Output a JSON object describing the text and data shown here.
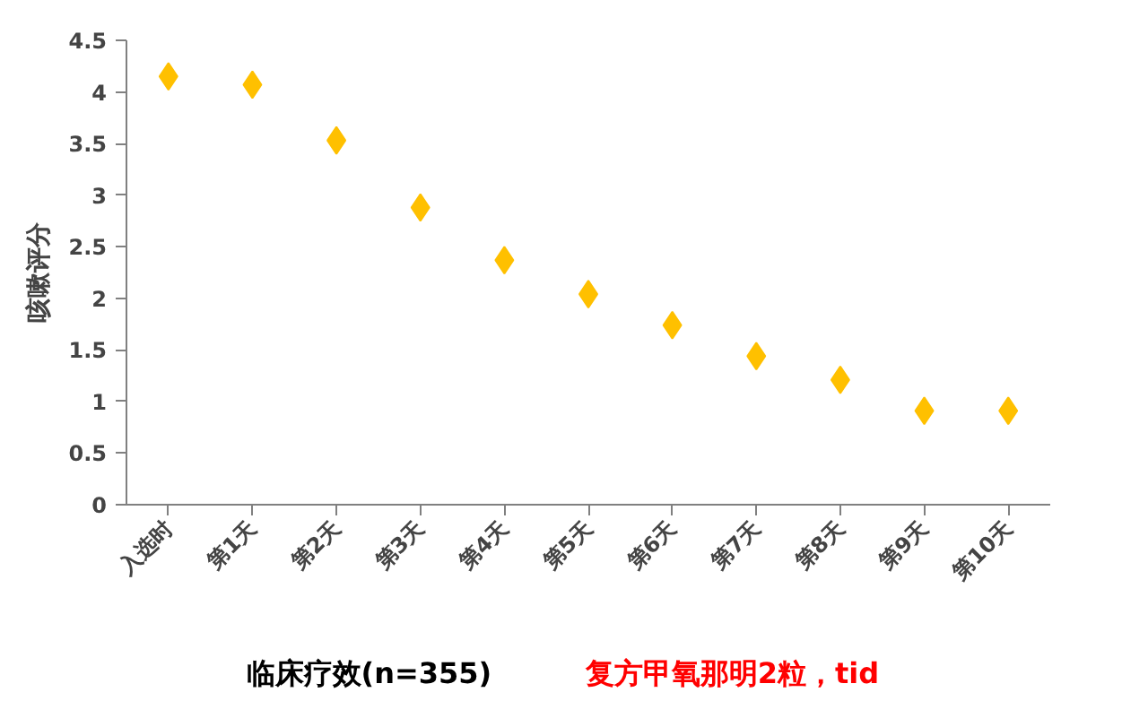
{
  "chart_data": {
    "type": "scatter",
    "ylabel": "咳嗽评分",
    "categories": [
      "入选时",
      "第1天",
      "第2天",
      "第3天",
      "第4天",
      "第5天",
      "第6天",
      "第7天",
      "第8天",
      "第9天",
      "第10天"
    ],
    "series": [
      {
        "color": "#ffc000",
        "values": [
          4.15,
          4.07,
          3.53,
          2.88,
          2.37,
          2.04,
          1.74,
          1.44,
          1.21,
          0.91,
          0.91
        ]
      }
    ],
    "marker": "diamond",
    "grid": false,
    "ylim": [
      0,
      4.5
    ],
    "yticks": [
      0,
      0.5,
      1,
      1.5,
      2,
      2.5,
      3,
      3.5,
      4,
      4.5
    ],
    "annotations": [
      "临床疗效(n=355)",
      "复方甲氧那明2粒，tid"
    ]
  }
}
